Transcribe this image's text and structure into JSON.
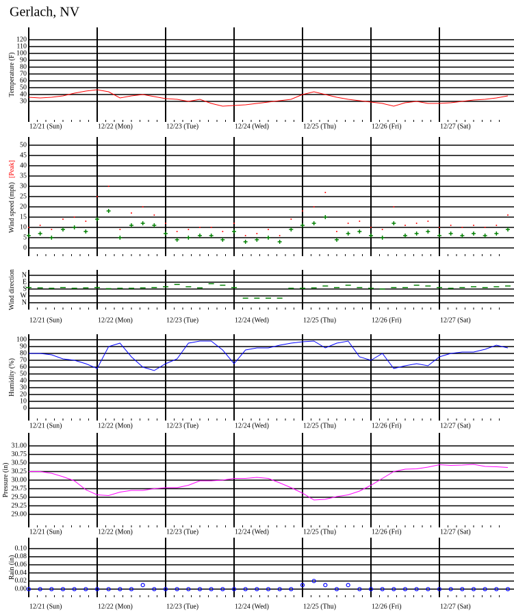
{
  "title": "Gerlach, NV",
  "chart_data": [
    {
      "type": "line",
      "ylabel": "Temperature (F)",
      "xlim": [
        0,
        168
      ],
      "ylim": [
        0,
        138
      ],
      "yticks": [
        30,
        40,
        50,
        60,
        70,
        80,
        90,
        100,
        110,
        120
      ],
      "xticks": [
        {
          "value": 0,
          "label": "12/21 (Sun)"
        },
        {
          "value": 24,
          "label": "12/22 (Mon)"
        },
        {
          "value": 48,
          "label": "12/23 (Tue)"
        },
        {
          "value": 72,
          "label": "12/24 (Wed)"
        },
        {
          "value": 96,
          "label": "12/25 (Thu)"
        },
        {
          "value": 120,
          "label": "12/26 (Fri)"
        },
        {
          "value": 144,
          "label": "12/27 (Sat)"
        }
      ],
      "x": [
        0,
        4,
        8,
        12,
        16,
        20,
        24,
        28,
        32,
        36,
        40,
        44,
        48,
        52,
        56,
        60,
        64,
        68,
        72,
        76,
        80,
        84,
        88,
        92,
        96,
        100,
        104,
        108,
        112,
        116,
        120,
        124,
        128,
        132,
        136,
        140,
        144,
        148,
        152,
        156,
        160,
        164,
        168
      ],
      "series": [
        {
          "color": "#ff0000",
          "marker": "line",
          "values": [
            36,
            35,
            36,
            38,
            42,
            45,
            47,
            44,
            35,
            38,
            40,
            37,
            34,
            33,
            30,
            33,
            27,
            23,
            24,
            25,
            27,
            29,
            31,
            33,
            40,
            44,
            40,
            36,
            33,
            31,
            29,
            27,
            23,
            28,
            30,
            27,
            27,
            28,
            30,
            32,
            33,
            35,
            38
          ]
        }
      ]
    },
    {
      "type": "scatter",
      "ylabel": "Wind speed (mph)",
      "xlim": [
        0,
        168
      ],
      "ylim": [
        -4,
        54
      ],
      "yticks": [
        0,
        5,
        10,
        15,
        20,
        25,
        30,
        35,
        40,
        45,
        50
      ],
      "x": [
        0,
        4,
        8,
        12,
        16,
        20,
        24,
        28,
        32,
        36,
        40,
        44,
        48,
        52,
        56,
        60,
        64,
        68,
        72,
        76,
        80,
        84,
        88,
        92,
        96,
        100,
        104,
        108,
        112,
        116,
        120,
        124,
        128,
        132,
        136,
        140,
        144,
        148,
        152,
        156,
        160,
        164,
        168
      ],
      "series": [
        {
          "name": "[Peak]",
          "color": "#ff0000",
          "marker": "dot",
          "values": [
            10,
            11,
            9,
            14,
            15,
            13,
            25,
            30,
            9,
            17,
            20,
            16,
            12,
            8,
            9,
            10,
            10,
            8,
            12,
            6,
            7,
            9,
            6,
            14,
            18,
            20,
            27,
            8,
            12,
            13,
            10,
            9,
            20,
            11,
            12,
            13,
            10,
            11,
            10,
            11,
            10,
            11,
            16
          ]
        },
        {
          "color": "#008000",
          "marker": "plus",
          "values": [
            6,
            7,
            5,
            9,
            10,
            8,
            14,
            18,
            5,
            11,
            12,
            11,
            7,
            4,
            5,
            6,
            6,
            4,
            8,
            3,
            4,
            5,
            3,
            9,
            11,
            12,
            15,
            4,
            7,
            8,
            6,
            5,
            12,
            6,
            7,
            8,
            6,
            7,
            6,
            7,
            6,
            7,
            9
          ]
        }
      ]
    },
    {
      "type": "scatter",
      "ylabel": "Wind direction",
      "xlim": [
        0,
        168
      ],
      "ylim": [
        450,
        -72
      ],
      "yticks": [
        {
          "value": 0,
          "label": "N"
        },
        {
          "value": 90,
          "label": "E"
        },
        {
          "value": 180,
          "label": "S"
        },
        {
          "value": 270,
          "label": "W"
        },
        {
          "value": 360,
          "label": "N"
        }
      ],
      "xticks": [
        {
          "value": 0,
          "label": "12/21 (Sun)"
        },
        {
          "value": 24,
          "label": "12/22 (Mon)"
        },
        {
          "value": 48,
          "label": "12/23 (Tue)"
        },
        {
          "value": 72,
          "label": "12/24 (Wed)"
        },
        {
          "value": 96,
          "label": "12/25 (Thu)"
        },
        {
          "value": 120,
          "label": "12/26 (Fri)"
        },
        {
          "value": 144,
          "label": "12/27 (Sat)"
        }
      ],
      "x": [
        0,
        4,
        8,
        12,
        16,
        20,
        24,
        28,
        32,
        36,
        40,
        44,
        48,
        52,
        56,
        60,
        64,
        68,
        72,
        76,
        80,
        84,
        88,
        92,
        96,
        100,
        104,
        108,
        112,
        116,
        120,
        124,
        128,
        132,
        136,
        140,
        144,
        148,
        152,
        156,
        160,
        164,
        168
      ],
      "series": [
        {
          "color": "#008000",
          "marker": "dash",
          "values": [
            160,
            165,
            170,
            160,
            170,
            165,
            160,
            175,
            170,
            170,
            165,
            160,
            150,
            120,
            150,
            165,
            110,
            130,
            160,
            300,
            300,
            300,
            300,
            170,
            170,
            165,
            140,
            160,
            130,
            160,
            170,
            180,
            160,
            160,
            130,
            140,
            160,
            170,
            160,
            150,
            160,
            150,
            140
          ]
        }
      ]
    },
    {
      "type": "line",
      "ylabel": "Humidity (%)",
      "xlim": [
        0,
        168
      ],
      "ylim": [
        -18,
        108
      ],
      "yticks": [
        0,
        10,
        20,
        30,
        40,
        50,
        60,
        70,
        80,
        90,
        100
      ],
      "xticks": [
        {
          "value": 0,
          "label": "12/21 (Sun)"
        },
        {
          "value": 24,
          "label": "12/22 (Mon)"
        },
        {
          "value": 48,
          "label": "12/23 (Tue)"
        },
        {
          "value": 72,
          "label": "12/24 (Wed)"
        },
        {
          "value": 96,
          "label": "12/25 (Thu)"
        },
        {
          "value": 120,
          "label": "12/26 (Fri)"
        },
        {
          "value": 144,
          "label": "12/27 (Sat)"
        }
      ],
      "x": [
        0,
        4,
        8,
        12,
        16,
        20,
        24,
        28,
        32,
        36,
        40,
        44,
        48,
        52,
        56,
        60,
        64,
        68,
        72,
        76,
        80,
        84,
        88,
        92,
        96,
        100,
        104,
        108,
        112,
        116,
        120,
        124,
        128,
        132,
        136,
        140,
        144,
        148,
        152,
        156,
        160,
        164,
        168
      ],
      "series": [
        {
          "color": "#0000ff",
          "marker": "line",
          "values": [
            80,
            80,
            78,
            72,
            70,
            65,
            58,
            90,
            95,
            75,
            60,
            55,
            65,
            72,
            95,
            98,
            98,
            85,
            65,
            85,
            88,
            88,
            92,
            95,
            97,
            98,
            88,
            95,
            98,
            75,
            70,
            80,
            58,
            62,
            65,
            62,
            75,
            80,
            82,
            82,
            86,
            92,
            88
          ]
        }
      ]
    },
    {
      "type": "line",
      "ylabel": "Pressure (in)",
      "xlim": [
        0,
        168
      ],
      "ylim": [
        28.62,
        31.38
      ],
      "yticks": [
        {
          "value": 29,
          "label": "29.00"
        },
        29.25,
        {
          "value": 29.5,
          "label": "29.50"
        },
        29.75,
        {
          "value": 30,
          "label": "30.00"
        },
        30.25,
        {
          "value": 30.5,
          "label": "30.50"
        },
        30.75,
        {
          "value": 31,
          "label": "31.00"
        }
      ],
      "xticks": [
        {
          "value": 0,
          "label": "12/21 (Sun)"
        },
        {
          "value": 24,
          "label": "12/22 (Mon)"
        },
        {
          "value": 48,
          "label": "12/23 (Tue)"
        },
        {
          "value": 72,
          "label": "12/24 (Wed)"
        },
        {
          "value": 96,
          "label": "12/25 (Thu)"
        },
        {
          "value": 120,
          "label": "12/26 (Fri)"
        },
        {
          "value": 144,
          "label": "12/27 (Sat)"
        }
      ],
      "x": [
        0,
        4,
        8,
        12,
        16,
        20,
        24,
        28,
        32,
        36,
        40,
        44,
        48,
        52,
        56,
        60,
        64,
        68,
        72,
        76,
        80,
        84,
        88,
        92,
        96,
        100,
        104,
        108,
        112,
        116,
        120,
        124,
        128,
        132,
        136,
        140,
        144,
        148,
        152,
        156,
        160,
        164,
        168
      ],
      "series": [
        {
          "color": "#ff00ff",
          "marker": "line",
          "values": [
            30.25,
            30.25,
            30.2,
            30.1,
            29.98,
            29.72,
            29.57,
            29.55,
            29.65,
            29.7,
            29.7,
            29.75,
            29.78,
            29.78,
            29.85,
            29.98,
            29.98,
            30.0,
            30.05,
            30.05,
            30.08,
            30.05,
            29.92,
            29.78,
            29.62,
            29.42,
            29.44,
            29.52,
            29.57,
            29.68,
            29.85,
            30.05,
            30.25,
            30.32,
            30.33,
            30.38,
            30.45,
            30.43,
            30.44,
            30.46,
            30.4,
            30.39,
            30.37
          ]
        }
      ]
    },
    {
      "type": "scatter",
      "ylabel": "Rain (in)",
      "xlim": [
        0,
        168
      ],
      "ylim": [
        -0.02,
        0.127
      ],
      "yticks": [
        {
          "value": 0,
          "label": "0.00"
        },
        0.02,
        0.04,
        0.06,
        0.08,
        {
          "value": 0.1,
          "label": "0.10"
        }
      ],
      "xticks": [
        {
          "value": 0,
          "label": "12/21 (Sun)"
        },
        {
          "value": 24,
          "label": "12/22 (Mon)"
        },
        {
          "value": 48,
          "label": "12/23 (Tue)"
        },
        {
          "value": 72,
          "label": "12/24 (Wed)"
        },
        {
          "value": 96,
          "label": "12/25 (Thu)"
        },
        {
          "value": 120,
          "label": "12/26 (Fri)"
        },
        {
          "value": 144,
          "label": "12/27 (Sat)"
        }
      ],
      "x": [
        0,
        4,
        8,
        12,
        16,
        20,
        24,
        28,
        32,
        36,
        40,
        44,
        48,
        52,
        56,
        60,
        64,
        68,
        72,
        76,
        80,
        84,
        88,
        92,
        96,
        100,
        104,
        108,
        112,
        116,
        120,
        124,
        128,
        132,
        136,
        140,
        144,
        148,
        152,
        156,
        160,
        164,
        168
      ],
      "series": [
        {
          "color": "#0000ff",
          "marker": "circle",
          "values": [
            0,
            0,
            0,
            0,
            0,
            0,
            0,
            0,
            0,
            0,
            0.01,
            0,
            0,
            0,
            0,
            0,
            0,
            0,
            0,
            0,
            0,
            0,
            0,
            0,
            0.01,
            0.02,
            0.01,
            0,
            0.01,
            0,
            0,
            0,
            0,
            0,
            0,
            0,
            0,
            0,
            0,
            0,
            0,
            0,
            0
          ]
        }
      ]
    }
  ]
}
